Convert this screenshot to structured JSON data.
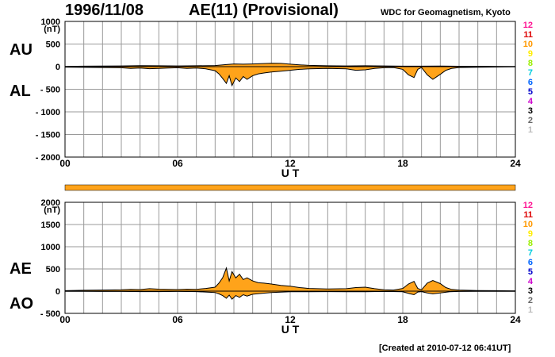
{
  "header": {
    "date": "1996/11/08",
    "title": "AE(11) (Provisional)",
    "organization": "WDC for Geomagnetism, Kyoto"
  },
  "footer": {
    "created": "[Created at 2010-07-12 06:41UT]"
  },
  "hour_legend": [
    {
      "label": "12",
      "color": "#ff1493"
    },
    {
      "label": "11",
      "color": "#dd0000"
    },
    {
      "label": "10",
      "color": "#ff9900"
    },
    {
      "label": "9",
      "color": "#ffee00"
    },
    {
      "label": "8",
      "color": "#99ee00"
    },
    {
      "label": "7",
      "color": "#00ccdd"
    },
    {
      "label": "6",
      "color": "#0066ff"
    },
    {
      "label": "5",
      "color": "#0000cc"
    },
    {
      "label": "4",
      "color": "#cc00cc"
    },
    {
      "label": "3",
      "color": "#000000"
    },
    {
      "label": "2",
      "color": "#666666"
    },
    {
      "label": "1",
      "color": "#bbbbbb"
    }
  ],
  "chart_data": [
    {
      "type": "area",
      "panel": "AU/AL",
      "series_labels": {
        "upper": "AU",
        "lower": "AL"
      },
      "unit_label": "(nT)",
      "xlabel": "U T",
      "xlim": [
        0,
        24
      ],
      "xticks": [
        "00",
        "06",
        "12",
        "18",
        "24"
      ],
      "ylim": [
        -2000,
        1000
      ],
      "yticks": [
        "1000",
        "500",
        "0",
        "- 500",
        "- 1000",
        "- 1500",
        "- 2000"
      ],
      "fill_color": "#ffa31a",
      "upper": [
        [
          0,
          5
        ],
        [
          1,
          10
        ],
        [
          2,
          12
        ],
        [
          3,
          15
        ],
        [
          4,
          22
        ],
        [
          5,
          20
        ],
        [
          6,
          15
        ],
        [
          7,
          20
        ],
        [
          8,
          25
        ],
        [
          8.6,
          45
        ],
        [
          9,
          60
        ],
        [
          9.5,
          55
        ],
        [
          10,
          60
        ],
        [
          11,
          75
        ],
        [
          11.5,
          72
        ],
        [
          12,
          55
        ],
        [
          12.5,
          40
        ],
        [
          13,
          28
        ],
        [
          14,
          20
        ],
        [
          15,
          15
        ],
        [
          16,
          20
        ],
        [
          17,
          15
        ],
        [
          18,
          10
        ],
        [
          19,
          10
        ],
        [
          20,
          12
        ],
        [
          21,
          8
        ],
        [
          22,
          8
        ],
        [
          23,
          6
        ],
        [
          24,
          5
        ]
      ],
      "lower": [
        [
          0,
          -10
        ],
        [
          1,
          -15
        ],
        [
          2,
          -20
        ],
        [
          3,
          -25
        ],
        [
          3.5,
          -40
        ],
        [
          4,
          -30
        ],
        [
          4.5,
          -45
        ],
        [
          5,
          -40
        ],
        [
          5.5,
          -30
        ],
        [
          6,
          -25
        ],
        [
          6.5,
          -40
        ],
        [
          7,
          -30
        ],
        [
          7.5,
          -50
        ],
        [
          8,
          -90
        ],
        [
          8.2,
          -160
        ],
        [
          8.4,
          -260
        ],
        [
          8.6,
          -370
        ],
        [
          8.75,
          -200
        ],
        [
          8.9,
          -420
        ],
        [
          9.1,
          -250
        ],
        [
          9.3,
          -330
        ],
        [
          9.5,
          -220
        ],
        [
          9.7,
          -280
        ],
        [
          10,
          -200
        ],
        [
          10.3,
          -160
        ],
        [
          10.6,
          -140
        ],
        [
          11,
          -120
        ],
        [
          11.5,
          -100
        ],
        [
          12,
          -80
        ],
        [
          12.5,
          -60
        ],
        [
          13,
          -50
        ],
        [
          14,
          -40
        ],
        [
          15,
          -50
        ],
        [
          15.5,
          -80
        ],
        [
          16,
          -70
        ],
        [
          16.5,
          -40
        ],
        [
          17,
          -25
        ],
        [
          17.5,
          -20
        ],
        [
          18,
          -60
        ],
        [
          18.3,
          -180
        ],
        [
          18.6,
          -240
        ],
        [
          18.8,
          -60
        ],
        [
          19,
          -20
        ],
        [
          19.3,
          -180
        ],
        [
          19.6,
          -280
        ],
        [
          20,
          -170
        ],
        [
          20.3,
          -80
        ],
        [
          20.6,
          -40
        ],
        [
          21,
          -20
        ],
        [
          22,
          -12
        ],
        [
          23,
          -8
        ],
        [
          24,
          -5
        ]
      ]
    },
    {
      "type": "area",
      "panel": "AE/AO",
      "series_labels": {
        "upper": "AE",
        "lower": "AO"
      },
      "unit_label": "(nT)",
      "xlabel": "U T",
      "xlim": [
        0,
        24
      ],
      "xticks": [
        "00",
        "06",
        "12",
        "18",
        "24"
      ],
      "ylim": [
        -500,
        2000
      ],
      "yticks": [
        "2000",
        "1500",
        "1000",
        "500",
        "0",
        "- 500"
      ],
      "fill_color": "#ffa31a",
      "upper": [
        [
          0,
          10
        ],
        [
          1,
          20
        ],
        [
          2,
          25
        ],
        [
          3,
          30
        ],
        [
          3.5,
          40
        ],
        [
          4,
          35
        ],
        [
          4.5,
          55
        ],
        [
          5,
          45
        ],
        [
          5.5,
          40
        ],
        [
          6,
          35
        ],
        [
          6.5,
          45
        ],
        [
          7,
          40
        ],
        [
          7.5,
          60
        ],
        [
          8,
          90
        ],
        [
          8.2,
          180
        ],
        [
          8.4,
          300
        ],
        [
          8.6,
          520
        ],
        [
          8.75,
          230
        ],
        [
          8.9,
          440
        ],
        [
          9.1,
          300
        ],
        [
          9.3,
          380
        ],
        [
          9.5,
          260
        ],
        [
          9.7,
          300
        ],
        [
          10,
          230
        ],
        [
          10.3,
          190
        ],
        [
          10.6,
          180
        ],
        [
          11,
          160
        ],
        [
          11.5,
          130
        ],
        [
          12,
          110
        ],
        [
          12.5,
          80
        ],
        [
          13,
          60
        ],
        [
          14,
          50
        ],
        [
          15,
          55
        ],
        [
          15.5,
          80
        ],
        [
          16,
          90
        ],
        [
          16.5,
          55
        ],
        [
          17,
          30
        ],
        [
          17.5,
          25
        ],
        [
          18,
          60
        ],
        [
          18.3,
          160
        ],
        [
          18.6,
          220
        ],
        [
          18.8,
          60
        ],
        [
          19,
          30
        ],
        [
          19.3,
          180
        ],
        [
          19.6,
          240
        ],
        [
          20,
          170
        ],
        [
          20.3,
          80
        ],
        [
          20.6,
          40
        ],
        [
          21,
          25
        ],
        [
          22,
          15
        ],
        [
          23,
          10
        ],
        [
          24,
          8
        ]
      ],
      "lower": [
        [
          0,
          -5
        ],
        [
          1,
          -5
        ],
        [
          2,
          -8
        ],
        [
          3,
          -8
        ],
        [
          4,
          -10
        ],
        [
          5,
          -10
        ],
        [
          6,
          -8
        ],
        [
          7,
          -10
        ],
        [
          8,
          -30
        ],
        [
          8.2,
          -60
        ],
        [
          8.4,
          -100
        ],
        [
          8.6,
          -160
        ],
        [
          8.75,
          -90
        ],
        [
          8.9,
          -180
        ],
        [
          9.1,
          -100
        ],
        [
          9.3,
          -140
        ],
        [
          9.5,
          -80
        ],
        [
          9.7,
          -110
        ],
        [
          10,
          -70
        ],
        [
          10.5,
          -50
        ],
        [
          11,
          -30
        ],
        [
          12,
          -15
        ],
        [
          13,
          -12
        ],
        [
          14,
          -10
        ],
        [
          15,
          -12
        ],
        [
          16,
          -15
        ],
        [
          17,
          -8
        ],
        [
          18,
          -15
        ],
        [
          18.4,
          -60
        ],
        [
          18.6,
          -80
        ],
        [
          18.8,
          -20
        ],
        [
          19,
          -10
        ],
        [
          19.3,
          -40
        ],
        [
          19.6,
          -60
        ],
        [
          20,
          -40
        ],
        [
          20.5,
          -15
        ],
        [
          21,
          -8
        ],
        [
          22,
          -5
        ],
        [
          23,
          -5
        ],
        [
          24,
          -3
        ]
      ]
    }
  ]
}
